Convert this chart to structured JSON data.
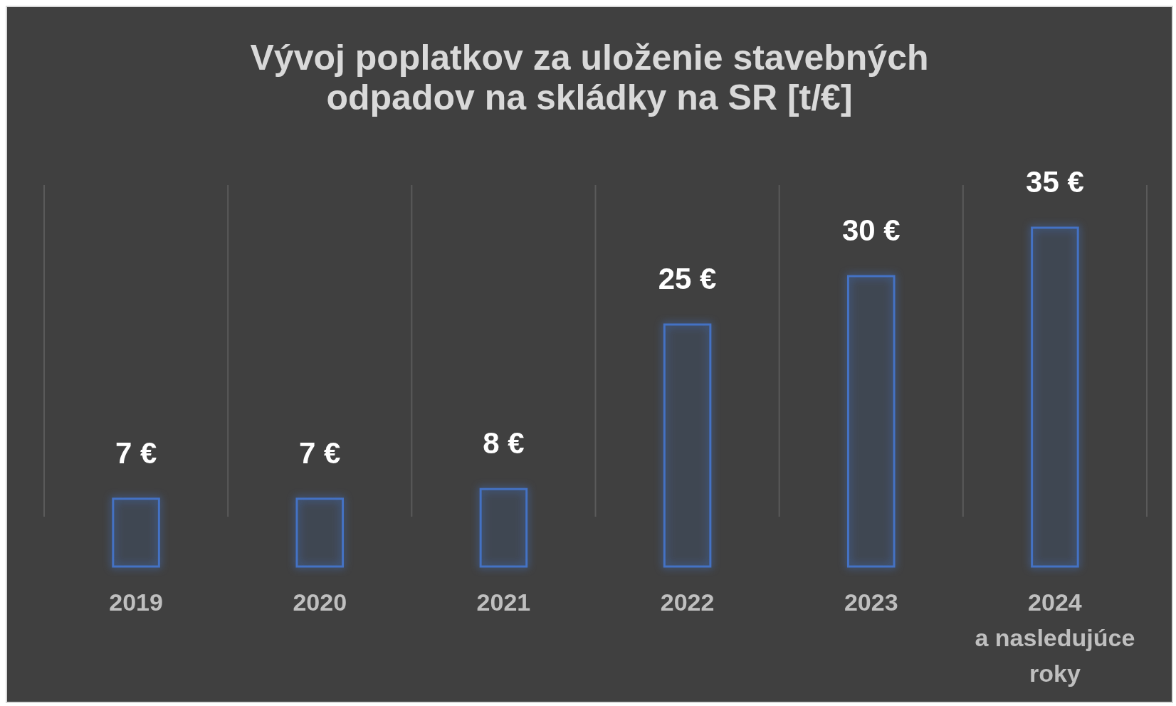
{
  "chart_data": {
    "type": "bar",
    "title": "Vývoj poplatkov za uloženie stavebných odpadov na skládky na SR [t/€]",
    "categories": [
      "2019",
      "2020",
      "2021",
      "2022",
      "2023",
      "2024\na nasledujúce roky"
    ],
    "values": [
      7,
      7,
      8,
      25,
      30,
      35
    ],
    "value_labels": [
      "7 €",
      "7 €",
      "8 €",
      "25 €",
      "30 €",
      "35 €"
    ],
    "color": "#4472c4",
    "grid": "x"
  }
}
